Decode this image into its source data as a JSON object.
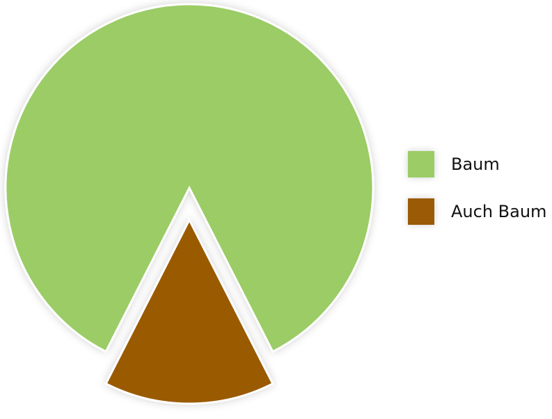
{
  "chart_data": {
    "type": "pie",
    "categories": [
      "Baum",
      "Auch Baum"
    ],
    "values": [
      85,
      15
    ],
    "colors": [
      "#9bcc66",
      "#9a5a06"
    ],
    "exploded": [
      false,
      true
    ],
    "legend_position": "right"
  }
}
